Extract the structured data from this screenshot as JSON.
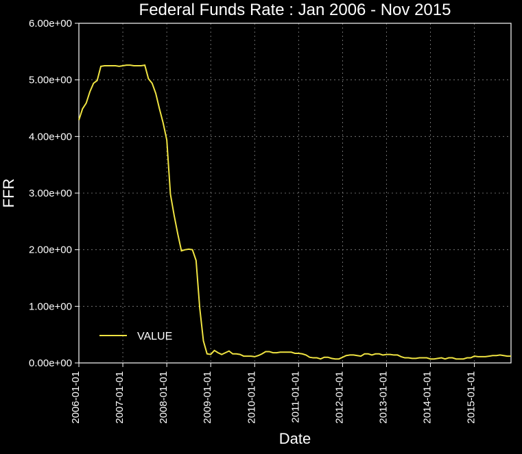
{
  "chart": {
    "type": "line",
    "title": "Federal Funds Rate : Jan 2006 - Nov 2015",
    "title_fontsize": 24,
    "xlabel": "Date",
    "ylabel": "FFR",
    "label_fontsize": 22,
    "background_color": "#000000",
    "axis_color": "#ffffff",
    "grid_color": "#888888",
    "tick_fontsize": 15,
    "line_color": "#f0e442",
    "line_width": 2,
    "ylim": [
      0,
      6
    ],
    "ytick_step": 1,
    "ytick_labels": [
      "0.00e+00",
      "1.00e+00",
      "2.00e+00",
      "3.00e+00",
      "4.00e+00",
      "5.00e+00",
      "6.00e+00"
    ],
    "xtick_labels": [
      "2006-01-01",
      "2007-01-01",
      "2008-01-01",
      "2009-01-01",
      "2010-01-01",
      "2011-01-01",
      "2012-01-01",
      "2013-01-01",
      "2014-01-01",
      "2015-01-01"
    ],
    "legend_label": "VALUE",
    "data": {
      "x_index": [
        0,
        1,
        2,
        3,
        4,
        5,
        6,
        7,
        8,
        9,
        10,
        11,
        12,
        13,
        14,
        15,
        16,
        17,
        18,
        19,
        20,
        21,
        22,
        23,
        24,
        25,
        26,
        27,
        28,
        29,
        30,
        31,
        32,
        33,
        34,
        35,
        36,
        37,
        38,
        39,
        40,
        41,
        42,
        43,
        44,
        45,
        46,
        47,
        48,
        49,
        50,
        51,
        52,
        53,
        54,
        55,
        56,
        57,
        58,
        59,
        60,
        61,
        62,
        63,
        64,
        65,
        66,
        67,
        68,
        69,
        70,
        71,
        72,
        73,
        74,
        75,
        76,
        77,
        78,
        79,
        80,
        81,
        82,
        83,
        84,
        85,
        86,
        87,
        88,
        89,
        90,
        91,
        92,
        93,
        94,
        95,
        96,
        97,
        98,
        99,
        100,
        101,
        102,
        103,
        104,
        105,
        106,
        107,
        108,
        109,
        110,
        111,
        112,
        113,
        114,
        115,
        116,
        117,
        118
      ],
      "y": [
        4.29,
        4.49,
        4.59,
        4.79,
        4.94,
        4.99,
        5.24,
        5.25,
        5.25,
        5.25,
        5.25,
        5.24,
        5.25,
        5.26,
        5.26,
        5.25,
        5.25,
        5.25,
        5.26,
        5.02,
        4.94,
        4.76,
        4.49,
        4.24,
        3.94,
        2.98,
        2.61,
        2.28,
        1.98,
        2.0,
        2.01,
        2.0,
        1.81,
        0.97,
        0.39,
        0.16,
        0.15,
        0.22,
        0.18,
        0.15,
        0.18,
        0.21,
        0.16,
        0.16,
        0.15,
        0.12,
        0.12,
        0.12,
        0.11,
        0.13,
        0.16,
        0.2,
        0.2,
        0.18,
        0.18,
        0.19,
        0.19,
        0.19,
        0.19,
        0.17,
        0.17,
        0.16,
        0.14,
        0.1,
        0.09,
        0.09,
        0.07,
        0.1,
        0.1,
        0.08,
        0.07,
        0.07,
        0.1,
        0.13,
        0.14,
        0.14,
        0.13,
        0.12,
        0.16,
        0.16,
        0.14,
        0.16,
        0.16,
        0.14,
        0.15,
        0.15,
        0.14,
        0.14,
        0.11,
        0.09,
        0.09,
        0.08,
        0.08,
        0.09,
        0.09,
        0.09,
        0.07,
        0.07,
        0.08,
        0.09,
        0.07,
        0.09,
        0.09,
        0.07,
        0.07,
        0.07,
        0.09,
        0.09,
        0.12,
        0.11,
        0.11,
        0.11,
        0.12,
        0.13,
        0.13,
        0.14,
        0.13,
        0.12,
        0.12
      ]
    }
  }
}
